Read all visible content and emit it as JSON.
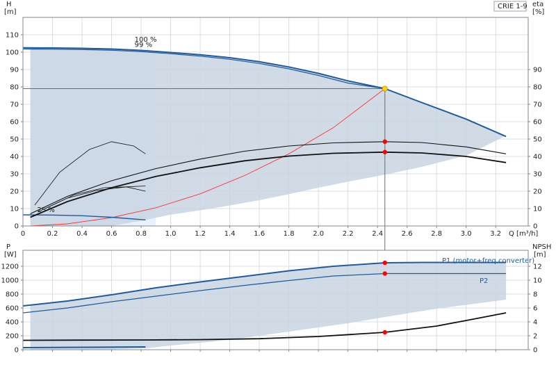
{
  "chart_data": {
    "type": "line",
    "product_label": "CRIE 1-9",
    "colors": {
      "duty_fill": "#c8d5e2",
      "low_fill": "#e9f2fc",
      "accent": "#1f5a9a",
      "system_curve": "#ff3333",
      "duty_point": "#ff0000",
      "op_point": "#ffd700",
      "grid": "#d9dde3",
      "frame": "#7f8791"
    },
    "top_panel": {
      "y_left": {
        "title": "H",
        "unit": "[m]",
        "ticks": [
          0,
          10,
          20,
          30,
          40,
          50,
          60,
          70,
          80,
          90,
          100,
          110
        ],
        "range": [
          0,
          120
        ]
      },
      "y_right": {
        "title": "eta",
        "unit": "[%]",
        "ticks": [
          0,
          10,
          20,
          30,
          40,
          50,
          60,
          70,
          80,
          90
        ],
        "range": [
          0,
          120
        ]
      },
      "x": {
        "title": "Q [m³/h]",
        "ticks": [
          0,
          0.2,
          0.4,
          0.6,
          0.8,
          1.0,
          1.2,
          1.4,
          1.6,
          1.8,
          2.0,
          2.2,
          2.4,
          2.6,
          2.8,
          3.0,
          3.2
        ],
        "tick_labels": [
          "0",
          "0.2",
          "0.4",
          "0.6",
          "0.8",
          "1.0",
          "1.2",
          "1.4",
          "1.6",
          "1.8",
          "2.0",
          "2.2",
          "2.4",
          "2.6",
          "2.8",
          "3.0",
          "3.2"
        ],
        "range": [
          0,
          3.42
        ]
      },
      "annotations": [
        {
          "text": "100 %",
          "x": 0.85,
          "y": 106
        },
        {
          "text": "99 %",
          "x": 0.85,
          "y": 103
        },
        {
          "text": "25 %",
          "x": 0.19,
          "y": 8
        }
      ],
      "head_100": {
        "x": [
          0,
          0.2,
          0.4,
          0.6,
          0.8,
          1.0,
          1.2,
          1.4,
          1.6,
          1.8,
          2.0,
          2.2,
          2.45,
          2.7,
          3.0,
          3.27
        ],
        "y": [
          102.5,
          102.4,
          102.2,
          101.8,
          101.0,
          99.8,
          98.5,
          96.8,
          94.5,
          91.5,
          87.8,
          83.5,
          79.0,
          71.0,
          61.5,
          51.5
        ]
      },
      "head_99": {
        "x": [
          0,
          0.2,
          0.4,
          0.6,
          0.8,
          1.0,
          1.2,
          1.4,
          1.6,
          1.8,
          2.0,
          2.2,
          2.45
        ],
        "y": [
          101.8,
          101.7,
          101.5,
          101.1,
          100.3,
          99.1,
          97.7,
          95.9,
          93.5,
          90.4,
          86.6,
          82.2,
          79.0
        ]
      },
      "head_25": {
        "x": [
          0,
          0.2,
          0.4,
          0.6,
          0.83
        ],
        "y": [
          6.4,
          6.3,
          5.9,
          5.0,
          3.5
        ]
      },
      "duty_region": {
        "upper": {
          "x": [
            0.05,
            0.2,
            0.4,
            0.6,
            0.83,
            1.0,
            1.2,
            1.4,
            1.6,
            1.8,
            2.0,
            2.2,
            2.45,
            2.7,
            3.0,
            3.27
          ],
          "y": [
            102.5,
            102.4,
            102.2,
            101.8,
            101.0,
            99.8,
            98.5,
            96.8,
            94.5,
            91.5,
            87.8,
            83.5,
            79.0,
            71.0,
            61.5,
            51.5
          ]
        },
        "lower": {
          "x": [
            0.05,
            0.2,
            0.4,
            0.6,
            0.83,
            1.0,
            1.2,
            1.4,
            1.6,
            1.8,
            2.0,
            2.2,
            2.45,
            2.7,
            3.0,
            3.27
          ],
          "y": [
            0,
            0,
            0,
            0,
            3.5,
            6.5,
            9.0,
            11.8,
            14.8,
            18.3,
            22.0,
            25.5,
            29.5,
            34.0,
            40.5,
            52.0
          ]
        }
      },
      "low_speed_region": {
        "x": [
          0.05,
          0.2,
          0.4,
          0.6,
          0.75,
          0.9
        ],
        "y_top": [
          102.5,
          102.4,
          102.2,
          101.8,
          101.2,
          100.6
        ],
        "y_bottom": [
          0,
          0,
          0,
          0,
          0,
          0
        ]
      },
      "eta_100": {
        "x": [
          0.05,
          0.3,
          0.6,
          0.9,
          1.2,
          1.5,
          1.8,
          2.1,
          2.45,
          2.7,
          3.0,
          3.27
        ],
        "y": [
          7,
          17,
          26,
          33,
          38.5,
          43,
          46,
          47.8,
          48.5,
          48,
          45.5,
          41.5
        ]
      },
      "eta_total": {
        "x": [
          0.05,
          0.3,
          0.6,
          0.9,
          1.2,
          1.5,
          1.8,
          2.1,
          2.45,
          2.7,
          3.0,
          3.27
        ],
        "y": [
          5,
          14,
          22,
          28.5,
          33.5,
          37.5,
          40.2,
          41.8,
          42.5,
          42,
          40,
          36.5
        ]
      },
      "eta_low_a": {
        "x": [
          0.08,
          0.25,
          0.45,
          0.6,
          0.75,
          0.83
        ],
        "y": [
          12,
          31,
          44,
          48.5,
          46,
          41.5
        ]
      },
      "eta_low_b": {
        "x": [
          0.15,
          0.35,
          0.55,
          0.7,
          0.83
        ],
        "y": [
          10,
          18,
          22,
          22.5,
          20
        ]
      },
      "eta_low_c": {
        "x": [
          0.1,
          0.3,
          0.5,
          0.7,
          0.83
        ],
        "y": [
          8,
          16,
          20.5,
          22.5,
          23
        ]
      },
      "system_curve": {
        "x": [
          0.05,
          0.3,
          0.6,
          0.9,
          1.2,
          1.5,
          1.8,
          2.1,
          2.45
        ],
        "y": [
          0,
          1.2,
          4.8,
          10.5,
          18.5,
          29,
          41.5,
          56.5,
          79
        ]
      },
      "operating_point": {
        "q": 2.45,
        "h": 79
      },
      "duty_markers": [
        {
          "q": 2.45,
          "value": 48.5
        },
        {
          "q": 2.45,
          "value": 42.5
        }
      ]
    },
    "bottom_panel": {
      "y_left": {
        "title": "P",
        "unit": "[W]",
        "ticks": [
          0,
          200,
          400,
          600,
          800,
          1000,
          1200
        ],
        "range": [
          0,
          1430
        ]
      },
      "y_right": {
        "title": "NPSH",
        "unit": "[m]",
        "ticks": [
          0,
          2,
          4,
          6,
          8,
          10,
          12
        ],
        "range": [
          0,
          14.3
        ]
      },
      "series": [
        {
          "name": "P1 (motor+freq.converter)",
          "x": [
            0,
            0.3,
            0.6,
            0.9,
            1.2,
            1.5,
            1.8,
            2.1,
            2.45,
            2.7,
            3.0,
            3.27
          ],
          "y": [
            630,
            700,
            790,
            890,
            975,
            1055,
            1135,
            1200,
            1250,
            1255,
            1255,
            1255
          ]
        },
        {
          "name": "P2",
          "x": [
            0,
            0.3,
            0.6,
            0.9,
            1.2,
            1.5,
            1.8,
            2.1,
            2.45,
            2.7,
            3.0,
            3.27
          ],
          "y": [
            530,
            600,
            690,
            770,
            850,
            925,
            995,
            1060,
            1095,
            1095,
            1095,
            1095
          ]
        }
      ],
      "npsh": {
        "x": [
          0,
          0.4,
          0.83,
          1.2,
          1.6,
          2.0,
          2.45,
          2.8,
          3.0,
          3.27
        ],
        "y": [
          1.35,
          1.38,
          1.4,
          1.45,
          1.58,
          1.9,
          2.5,
          3.4,
          4.2,
          5.3
        ]
      },
      "npsh_low": {
        "x": [
          0,
          0.4,
          0.83
        ],
        "y": [
          0.3,
          0.35,
          0.4
        ]
      },
      "shaded_region": {
        "upper": {
          "x": [
            0.05,
            0.3,
            0.6,
            0.9,
            1.2,
            1.5,
            1.8,
            2.1,
            2.45,
            2.7,
            3.0,
            3.27
          ],
          "y": [
            630,
            700,
            790,
            890,
            975,
            1055,
            1135,
            1200,
            1250,
            1255,
            1255,
            1255
          ]
        },
        "lower": {
          "x": [
            0.05,
            0.3,
            0.6,
            0.83,
            1.0,
            1.3,
            1.6,
            1.9,
            2.2,
            2.45,
            2.8,
            3.27
          ],
          "y": [
            0,
            0,
            5,
            20,
            60,
            120,
            200,
            290,
            380,
            470,
            590,
            720
          ]
        }
      },
      "duty_markers": [
        {
          "q": 2.45,
          "value": 1250,
          "axis": "left"
        },
        {
          "q": 2.45,
          "value": 1095,
          "axis": "left"
        },
        {
          "q": 2.45,
          "value": 2.5,
          "axis": "right"
        }
      ]
    }
  }
}
